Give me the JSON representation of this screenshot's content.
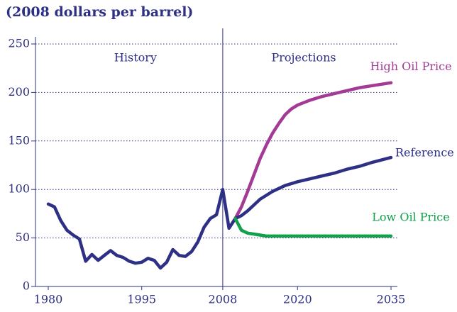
{
  "chart_data": {
    "type": "line",
    "title": "(2008 dollars per barrel)",
    "annotations": [
      {
        "text": "History",
        "x": 1994
      },
      {
        "text": "Projections",
        "x": 2021
      }
    ],
    "divider": 2008,
    "xlim": [
      1980,
      2035
    ],
    "xticks": [
      1980,
      1995,
      2008,
      2020,
      2035
    ],
    "ylim": [
      0,
      250
    ],
    "yticks": [
      0,
      50,
      100,
      150,
      200,
      250
    ],
    "grid": true,
    "series": [
      {
        "color": "#2e3085",
        "x": [
          1980,
          1981,
          1982,
          1983,
          1984,
          1985,
          1986,
          1987,
          1988,
          1989,
          1990,
          1991,
          1992,
          1993,
          1994,
          1995,
          1996,
          1997,
          1998,
          1999,
          2000,
          2001,
          2002,
          2003,
          2004,
          2005,
          2006,
          2007,
          2008,
          2009,
          2010
        ],
        "values": [
          85,
          82,
          68,
          58,
          53,
          49,
          26,
          33,
          27,
          32,
          37,
          32,
          30,
          26,
          24,
          25,
          29,
          27,
          19,
          25,
          38,
          32,
          31,
          36,
          46,
          61,
          70,
          74,
          100,
          60,
          70
        ]
      },
      {
        "name": "High Oil Price",
        "color": "#a23a96",
        "x": [
          2010,
          2011,
          2012,
          2013,
          2014,
          2015,
          2016,
          2017,
          2018,
          2019,
          2020,
          2022,
          2024,
          2026,
          2028,
          2030,
          2032,
          2035
        ],
        "values": [
          70,
          82,
          98,
          115,
          132,
          146,
          158,
          168,
          177,
          183,
          187,
          192,
          196,
          199,
          202,
          205,
          207,
          210
        ]
      },
      {
        "name": "Reference",
        "color": "#2e3085",
        "x": [
          2010,
          2011,
          2012,
          2013,
          2014,
          2015,
          2016,
          2017,
          2018,
          2019,
          2020,
          2022,
          2024,
          2026,
          2028,
          2030,
          2032,
          2035
        ],
        "values": [
          70,
          73,
          78,
          84,
          90,
          94,
          98,
          101,
          104,
          106,
          108,
          111,
          114,
          117,
          121,
          124,
          128,
          133
        ]
      },
      {
        "name": "Low Oil Price",
        "color": "#12a04a",
        "x": [
          2010,
          2011,
          2012,
          2013,
          2014,
          2015,
          2020,
          2025,
          2030,
          2035
        ],
        "values": [
          70,
          58,
          55,
          54,
          53,
          52,
          52,
          52,
          52,
          52
        ]
      }
    ]
  }
}
